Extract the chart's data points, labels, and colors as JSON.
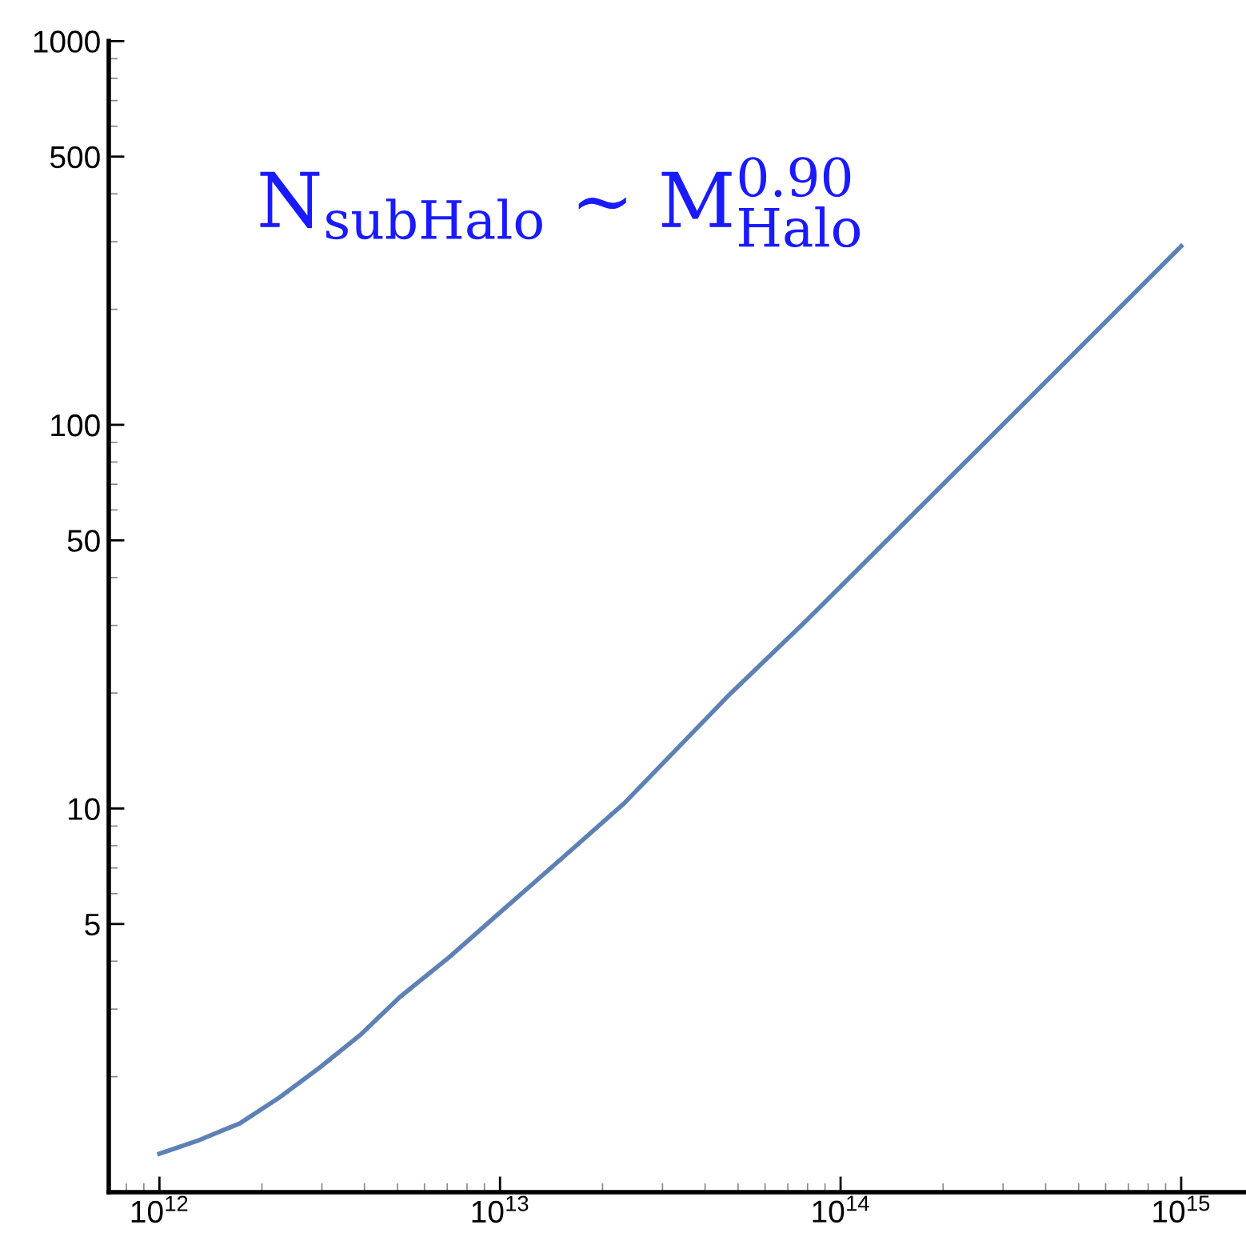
{
  "chart_data": {
    "type": "line",
    "log": "xy",
    "grid": false,
    "marker": "none",
    "line_style": "solid",
    "x": [
      1000000000000.0,
      1290000000000.0,
      1720000000000.0,
      2240000000000.0,
      2950000000000.0,
      3890000000000.0,
      5070000000000.0,
      7080000000000.0,
      10000000000000.0,
      15100000000000.0,
      23100000000000.0,
      47400000000000.0,
      78500000000000.0,
      100000000000000.0,
      316000000000000.0,
      1000000000000000.0
    ],
    "series": [
      {
        "color": "#5e81b5",
        "values": [
          1.26,
          1.36,
          1.51,
          1.76,
          2.11,
          2.57,
          3.22,
          4.09,
          5.36,
          7.38,
          10.3,
          19.9,
          30.6,
          37.9,
          105,
          292
        ]
      }
    ],
    "xlim": [
      710000000000.0,
      1550000000000000.0
    ],
    "xticks": [
      {
        "value": 1000000000000.0,
        "label": "10$^{12}$"
      },
      {
        "value": 10000000000000.0,
        "label": "10$^{13}$"
      },
      {
        "value": 100000000000000.0,
        "label": "10$^{14}$"
      },
      {
        "value": 1000000000000000.0,
        "label": "10$^{15}$"
      }
    ],
    "ylim": [
      1,
      1000
    ],
    "yticks": [
      5,
      10,
      50,
      100,
      500,
      1000
    ],
    "annotations": [
      "N$_{subHalo}$ ~ M$^{0.90}$$_{Halo}$"
    ]
  }
}
